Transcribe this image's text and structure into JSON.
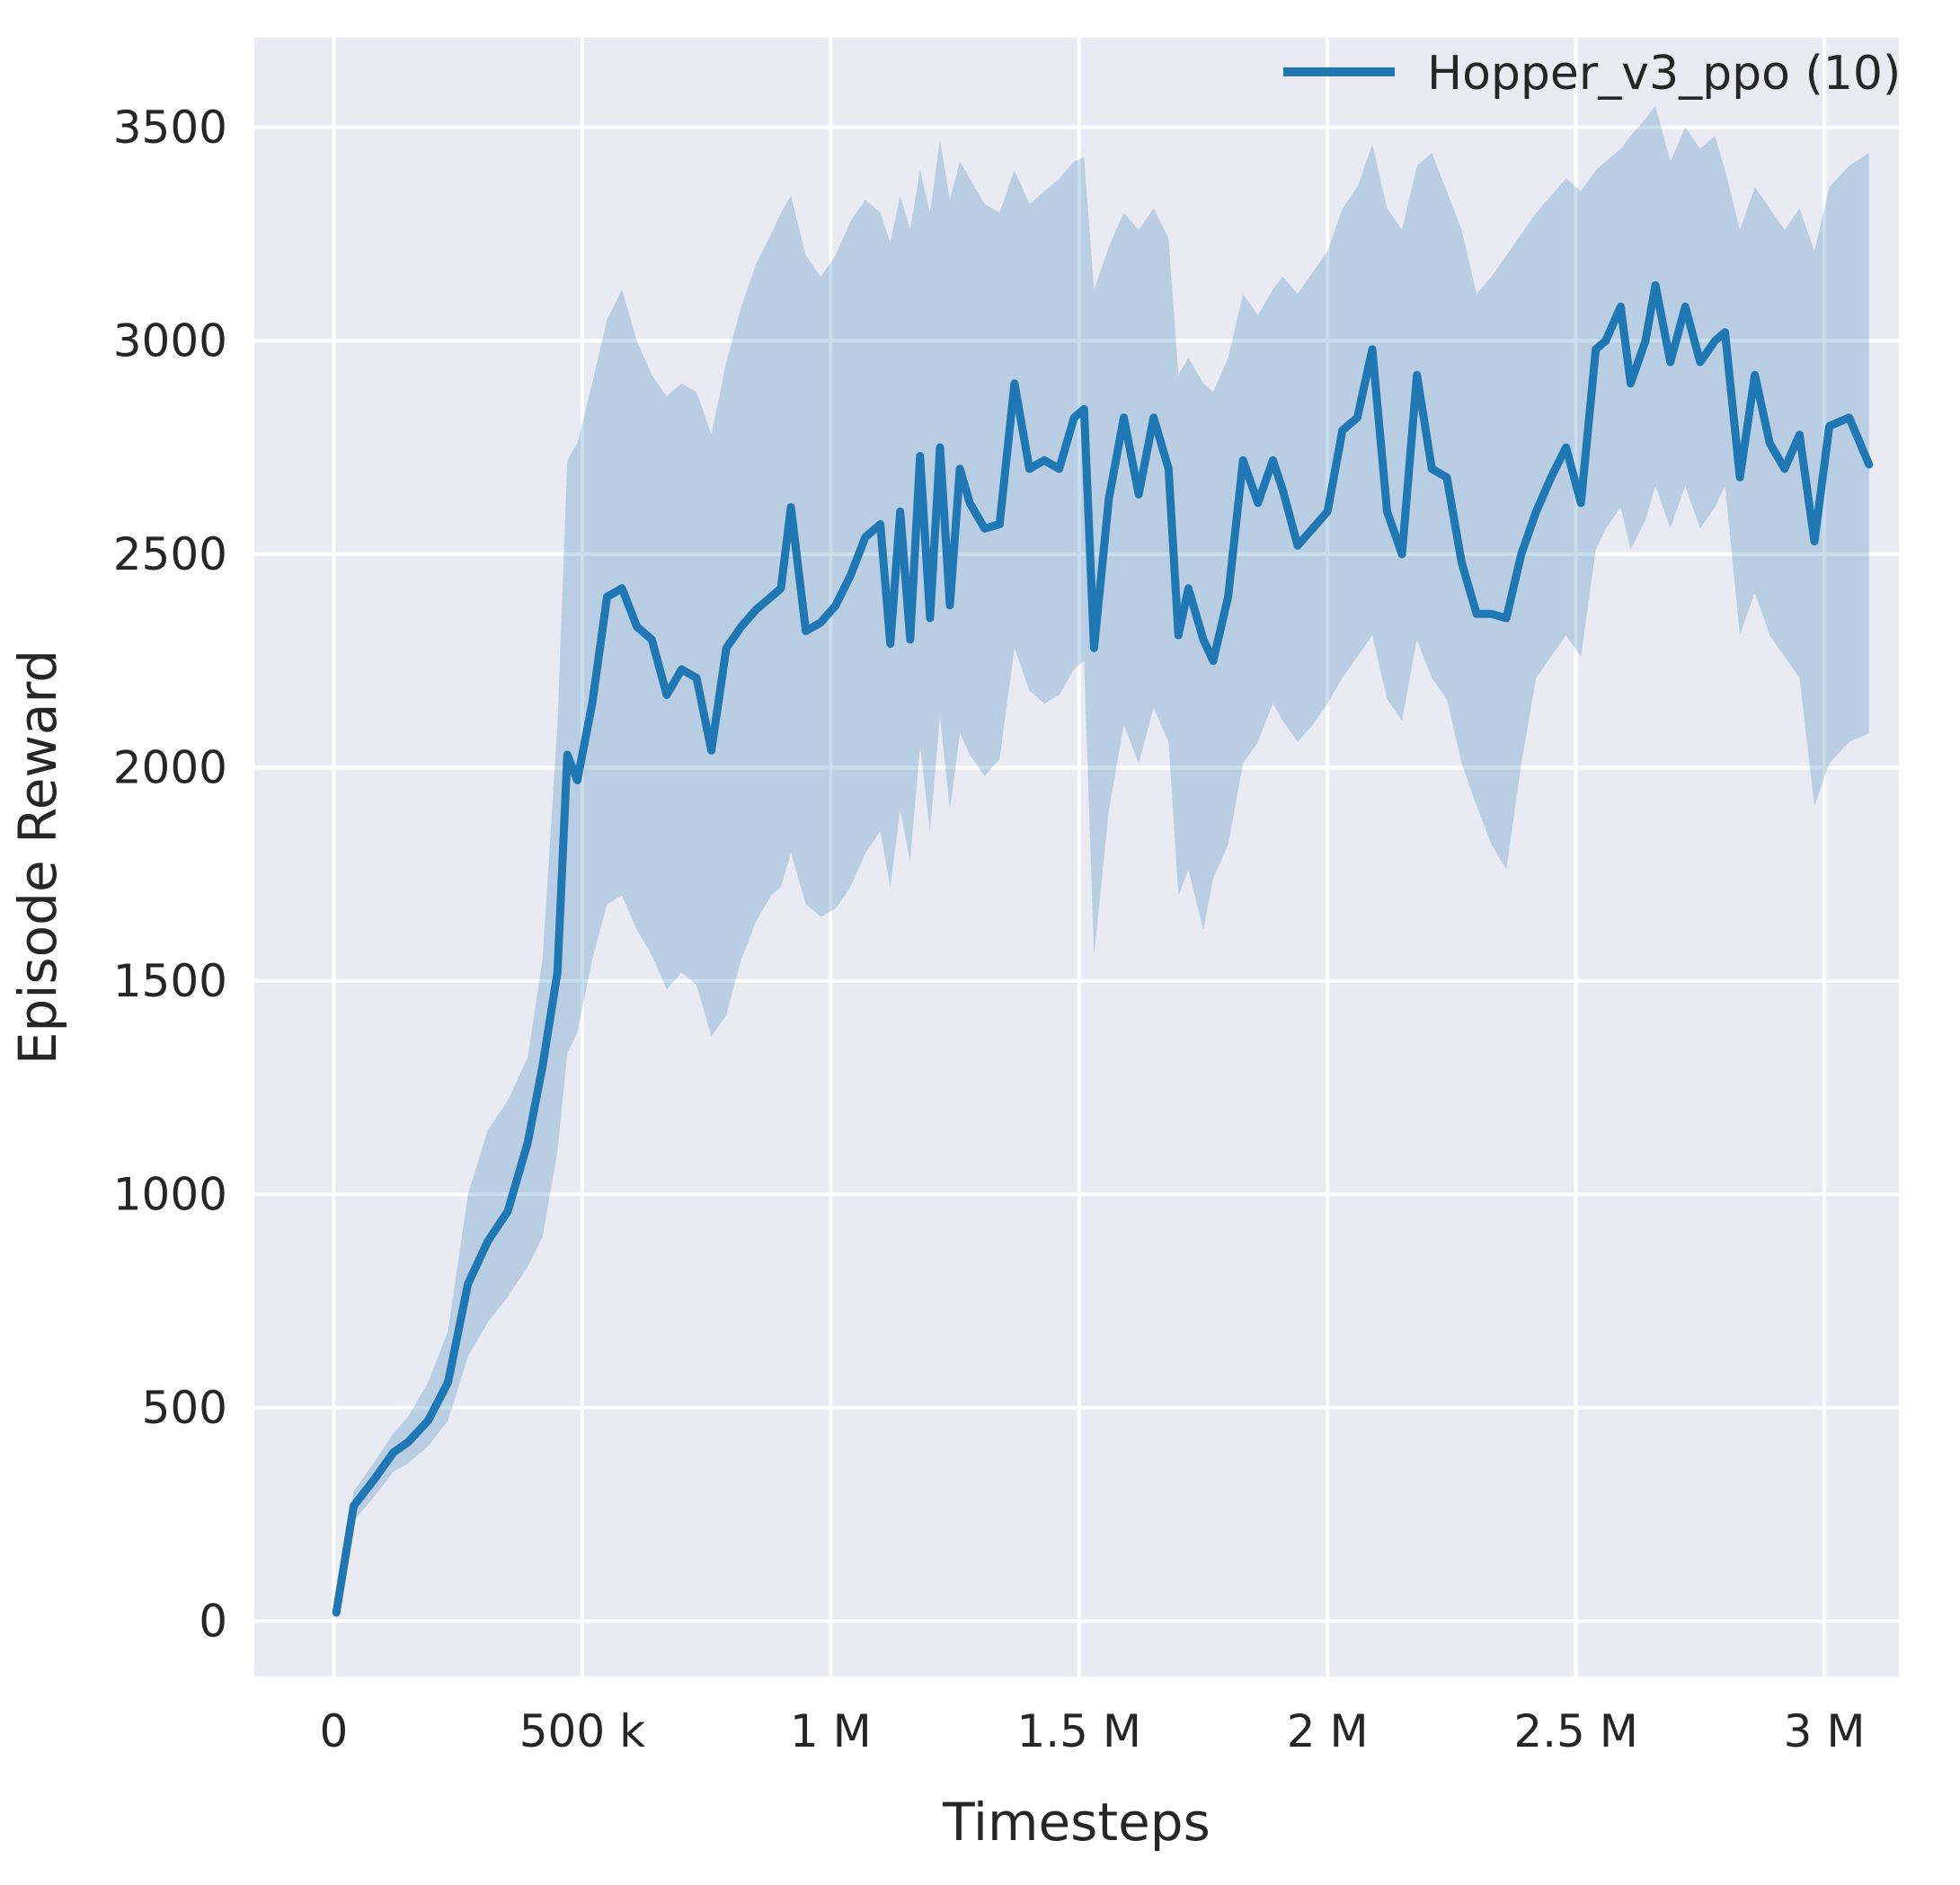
{
  "chart_data": {
    "type": "line",
    "title": "",
    "xlabel": "Timesteps",
    "ylabel": "Episode Reward",
    "legend_position": "upper right",
    "grid": true,
    "xlim": [
      -160000,
      3150000
    ],
    "ylim": [
      -130,
      3710
    ],
    "x_ticks": [
      {
        "value": 0,
        "label": "0"
      },
      {
        "value": 500000,
        "label": "500 k"
      },
      {
        "value": 1000000,
        "label": "1 M"
      },
      {
        "value": 1500000,
        "label": "1.5 M"
      },
      {
        "value": 2000000,
        "label": "2 M"
      },
      {
        "value": 2500000,
        "label": "2.5 M"
      },
      {
        "value": 3000000,
        "label": "3 M"
      }
    ],
    "y_ticks": [
      {
        "value": 0,
        "label": "0"
      },
      {
        "value": 500,
        "label": "500"
      },
      {
        "value": 1000,
        "label": "1000"
      },
      {
        "value": 1500,
        "label": "1500"
      },
      {
        "value": 2000,
        "label": "2000"
      },
      {
        "value": 2500,
        "label": "2500"
      },
      {
        "value": 3000,
        "label": "3000"
      },
      {
        "value": 3500,
        "label": "3500"
      }
    ],
    "colors": {
      "plot_bg": "#eaeaf2",
      "grid": "#ffffff",
      "line": "#1f77b4",
      "band": "#1f77b4",
      "band_opacity": 0.24,
      "text": "#262626"
    },
    "series": [
      {
        "name": "Hopper_v3_ppo (10)",
        "color": "#1f77b4",
        "points_format": [
          "timesteps",
          "mean",
          "lower",
          "upper"
        ],
        "points": [
          [
            5000,
            20,
            5,
            45
          ],
          [
            40000,
            270,
            235,
            305
          ],
          [
            80000,
            330,
            290,
            370
          ],
          [
            120000,
            395,
            350,
            440
          ],
          [
            150000,
            420,
            370,
            480
          ],
          [
            190000,
            470,
            410,
            560
          ],
          [
            230000,
            560,
            470,
            680
          ],
          [
            270000,
            790,
            620,
            1000
          ],
          [
            310000,
            890,
            700,
            1150
          ],
          [
            350000,
            960,
            760,
            1220
          ],
          [
            390000,
            1120,
            830,
            1320
          ],
          [
            420000,
            1300,
            900,
            1550
          ],
          [
            450000,
            1520,
            1100,
            2100
          ],
          [
            470000,
            2030,
            1330,
            2720
          ],
          [
            490000,
            1970,
            1380,
            2760
          ],
          [
            520000,
            2150,
            1550,
            2900
          ],
          [
            550000,
            2400,
            1680,
            3050
          ],
          [
            580000,
            2420,
            1700,
            3120
          ],
          [
            610000,
            2330,
            1620,
            3000
          ],
          [
            640000,
            2300,
            1560,
            2920
          ],
          [
            670000,
            2170,
            1480,
            2870
          ],
          [
            700000,
            2230,
            1520,
            2900
          ],
          [
            730000,
            2210,
            1490,
            2880
          ],
          [
            760000,
            2040,
            1370,
            2780
          ],
          [
            790000,
            2280,
            1420,
            2950
          ],
          [
            820000,
            2330,
            1550,
            3080
          ],
          [
            850000,
            2370,
            1640,
            3180
          ],
          [
            880000,
            2400,
            1700,
            3250
          ],
          [
            900000,
            2420,
            1720,
            3300
          ],
          [
            920000,
            2610,
            1800,
            3340
          ],
          [
            950000,
            2320,
            1680,
            3200
          ],
          [
            980000,
            2340,
            1650,
            3150
          ],
          [
            1010000,
            2380,
            1670,
            3200
          ],
          [
            1040000,
            2450,
            1720,
            3280
          ],
          [
            1070000,
            2540,
            1800,
            3330
          ],
          [
            1100000,
            2570,
            1850,
            3300
          ],
          [
            1120000,
            2290,
            1720,
            3230
          ],
          [
            1140000,
            2600,
            1900,
            3340
          ],
          [
            1160000,
            2300,
            1780,
            3260
          ],
          [
            1180000,
            2730,
            2050,
            3400
          ],
          [
            1200000,
            2350,
            1850,
            3300
          ],
          [
            1220000,
            2750,
            2120,
            3470
          ],
          [
            1240000,
            2380,
            1900,
            3330
          ],
          [
            1260000,
            2700,
            2080,
            3420
          ],
          [
            1280000,
            2620,
            2030,
            3380
          ],
          [
            1310000,
            2560,
            1980,
            3320
          ],
          [
            1340000,
            2570,
            2020,
            3300
          ],
          [
            1370000,
            2900,
            2280,
            3400
          ],
          [
            1400000,
            2700,
            2180,
            3320
          ],
          [
            1430000,
            2720,
            2150,
            3350
          ],
          [
            1460000,
            2700,
            2170,
            3380
          ],
          [
            1490000,
            2820,
            2230,
            3420
          ],
          [
            1510000,
            2840,
            2250,
            3430
          ],
          [
            1530000,
            2280,
            1560,
            3120
          ],
          [
            1560000,
            2630,
            1900,
            3220
          ],
          [
            1590000,
            2820,
            2100,
            3300
          ],
          [
            1620000,
            2640,
            2010,
            3260
          ],
          [
            1650000,
            2820,
            2140,
            3310
          ],
          [
            1680000,
            2700,
            2060,
            3240
          ],
          [
            1700000,
            2310,
            1700,
            2920
          ],
          [
            1720000,
            2420,
            1760,
            2960
          ],
          [
            1750000,
            2300,
            1620,
            2900
          ],
          [
            1770000,
            2250,
            1740,
            2880
          ],
          [
            1800000,
            2400,
            1820,
            2960
          ],
          [
            1830000,
            2720,
            2010,
            3110
          ],
          [
            1860000,
            2620,
            2060,
            3060
          ],
          [
            1890000,
            2720,
            2150,
            3120
          ],
          [
            1910000,
            2650,
            2110,
            3150
          ],
          [
            1940000,
            2520,
            2060,
            3110
          ],
          [
            1970000,
            2560,
            2100,
            3160
          ],
          [
            2000000,
            2600,
            2150,
            3210
          ],
          [
            2030000,
            2790,
            2210,
            3310
          ],
          [
            2060000,
            2820,
            2260,
            3360
          ],
          [
            2090000,
            2980,
            2310,
            3460
          ],
          [
            2120000,
            2600,
            2160,
            3310
          ],
          [
            2150000,
            2500,
            2110,
            3260
          ],
          [
            2180000,
            2920,
            2300,
            3410
          ],
          [
            2210000,
            2700,
            2210,
            3440
          ],
          [
            2240000,
            2680,
            2160,
            3350
          ],
          [
            2270000,
            2480,
            2010,
            3260
          ],
          [
            2300000,
            2360,
            1910,
            3110
          ],
          [
            2330000,
            2360,
            1820,
            3150
          ],
          [
            2360000,
            2350,
            1760,
            3200
          ],
          [
            2390000,
            2500,
            2010,
            3250
          ],
          [
            2420000,
            2600,
            2210,
            3300
          ],
          [
            2450000,
            2680,
            2260,
            3340
          ],
          [
            2480000,
            2750,
            2310,
            3380
          ],
          [
            2510000,
            2620,
            2260,
            3350
          ],
          [
            2540000,
            2980,
            2510,
            3400
          ],
          [
            2560000,
            3000,
            2560,
            3420
          ],
          [
            2590000,
            3080,
            2610,
            3450
          ],
          [
            2610000,
            2900,
            2510,
            3480
          ],
          [
            2640000,
            3000,
            2580,
            3520
          ],
          [
            2660000,
            3130,
            2660,
            3550
          ],
          [
            2690000,
            2950,
            2560,
            3420
          ],
          [
            2720000,
            3080,
            2660,
            3500
          ],
          [
            2750000,
            2950,
            2560,
            3450
          ],
          [
            2780000,
            3000,
            2610,
            3480
          ],
          [
            2800000,
            3020,
            2660,
            3400
          ],
          [
            2830000,
            2680,
            2310,
            3260
          ],
          [
            2860000,
            2920,
            2410,
            3360
          ],
          [
            2890000,
            2760,
            2310,
            3310
          ],
          [
            2920000,
            2700,
            2260,
            3260
          ],
          [
            2950000,
            2780,
            2210,
            3310
          ],
          [
            2980000,
            2530,
            1910,
            3210
          ],
          [
            3010000,
            2800,
            2010,
            3360
          ],
          [
            3050000,
            2820,
            2060,
            3410
          ],
          [
            3090000,
            2710,
            2080,
            3440
          ]
        ]
      }
    ]
  }
}
